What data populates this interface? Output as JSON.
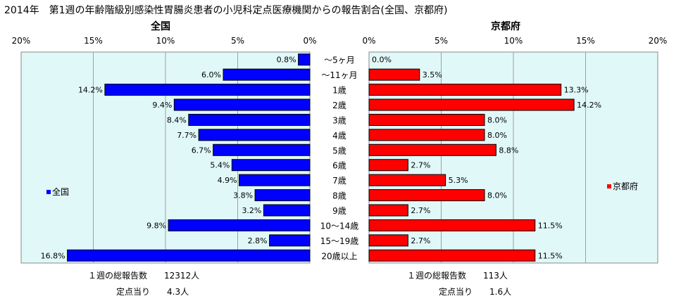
{
  "title": "2014年　第1週の年齢階級別感染性胃腸炎患者の小児科定点医療機関からの報告割合(全国、京都府)",
  "chart_data": [
    {
      "type": "bar",
      "orientation": "horizontal",
      "title": "全国",
      "x_direction": "reversed",
      "xlim": [
        0,
        20
      ],
      "x_ticks": [
        "20%",
        "15%",
        "10%",
        "5%",
        "0%"
      ],
      "grid": true,
      "legend": "left",
      "series": [
        {
          "name": "全国",
          "color": "#0000ff",
          "values": [
            0.8,
            6.0,
            14.2,
            9.4,
            8.4,
            7.7,
            6.7,
            5.4,
            4.9,
            3.8,
            3.2,
            9.8,
            2.8,
            16.8
          ],
          "labels": [
            "0.8%",
            "6.0%",
            "14.2%",
            "9.4%",
            "8.4%",
            "7.7%",
            "6.7%",
            "5.4%",
            "4.9%",
            "3.8%",
            "3.2%",
            "9.8%",
            "2.8%",
            "16.8%"
          ]
        }
      ]
    },
    {
      "type": "bar",
      "orientation": "horizontal",
      "title": "京都府",
      "xlim": [
        0,
        20
      ],
      "x_ticks": [
        "0%",
        "5%",
        "10%",
        "15%",
        "20%"
      ],
      "grid": true,
      "legend": "right",
      "series": [
        {
          "name": "京都府",
          "color": "#ff0000",
          "values": [
            0.0,
            3.5,
            13.3,
            14.2,
            8.0,
            8.0,
            8.8,
            2.7,
            5.3,
            8.0,
            2.7,
            11.5,
            2.7,
            11.5
          ],
          "labels": [
            "0.0%",
            "3.5%",
            "13.3%",
            "14.2%",
            "8.0%",
            "8.0%",
            "8.8%",
            "2.7%",
            "5.3%",
            "8.0%",
            "2.7%",
            "11.5%",
            "2.7%",
            "11.5%"
          ]
        }
      ]
    }
  ],
  "categories": [
    "～5ヶ月",
    "～11ヶ月",
    "1歳",
    "2歳",
    "3歳",
    "4歳",
    "5歳",
    "6歳",
    "7歳",
    "8歳",
    "9歳",
    "10～14歳",
    "15～19歳",
    "20歳以上"
  ],
  "notes": {
    "national_total": "１週の総報告数　　12312人",
    "national_per_site": "定点当り　　4.3人",
    "kyoto_total": "１週の総報告数　　113人",
    "kyoto_per_site": "定点当り　　1.6人"
  },
  "colors": {
    "plot_bg": "#e0f8f8",
    "grid": "#a0a0a0",
    "axis": "#000000"
  }
}
